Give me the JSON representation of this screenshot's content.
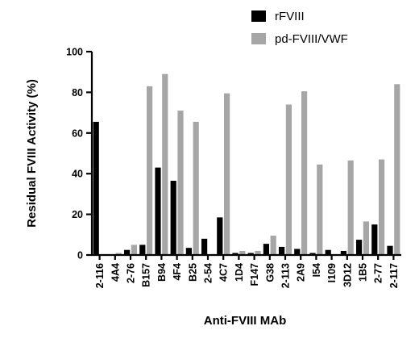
{
  "chart_data": {
    "type": "bar",
    "xlabel": "Anti-FVIII MAb",
    "ylabel": "Residual FVIII Activity (%)",
    "ylim": [
      0,
      100
    ],
    "yticks": [
      "0",
      "20",
      "40",
      "60",
      "80",
      "100"
    ],
    "legend_position": "top-right",
    "categories": [
      "2-116",
      "4A4",
      "2-76",
      "B157",
      "B94",
      "4F4",
      "B25",
      "2-54",
      "4C7",
      "1D4",
      "F147",
      "G38",
      "2-113",
      "2A9",
      "I54",
      "I109",
      "3D12",
      "1B5",
      "2-77",
      "2-117"
    ],
    "series": [
      {
        "name": "rFVIII",
        "color": "#000000",
        "values": [
          65.5,
          0,
          2.5,
          5,
          43,
          36.5,
          3.5,
          8,
          18.5,
          1,
          1,
          5.5,
          4,
          3,
          1,
          2.5,
          2,
          7.5,
          15,
          4.5
        ]
      },
      {
        "name": "pd-FVIII/VWF",
        "color": "#a6a6a6",
        "values": [
          0,
          1,
          5,
          83,
          89,
          71,
          65.5,
          0,
          79.5,
          2,
          2,
          9.5,
          74,
          80.5,
          44.5,
          0,
          46.5,
          16.5,
          47,
          84
        ]
      }
    ]
  }
}
